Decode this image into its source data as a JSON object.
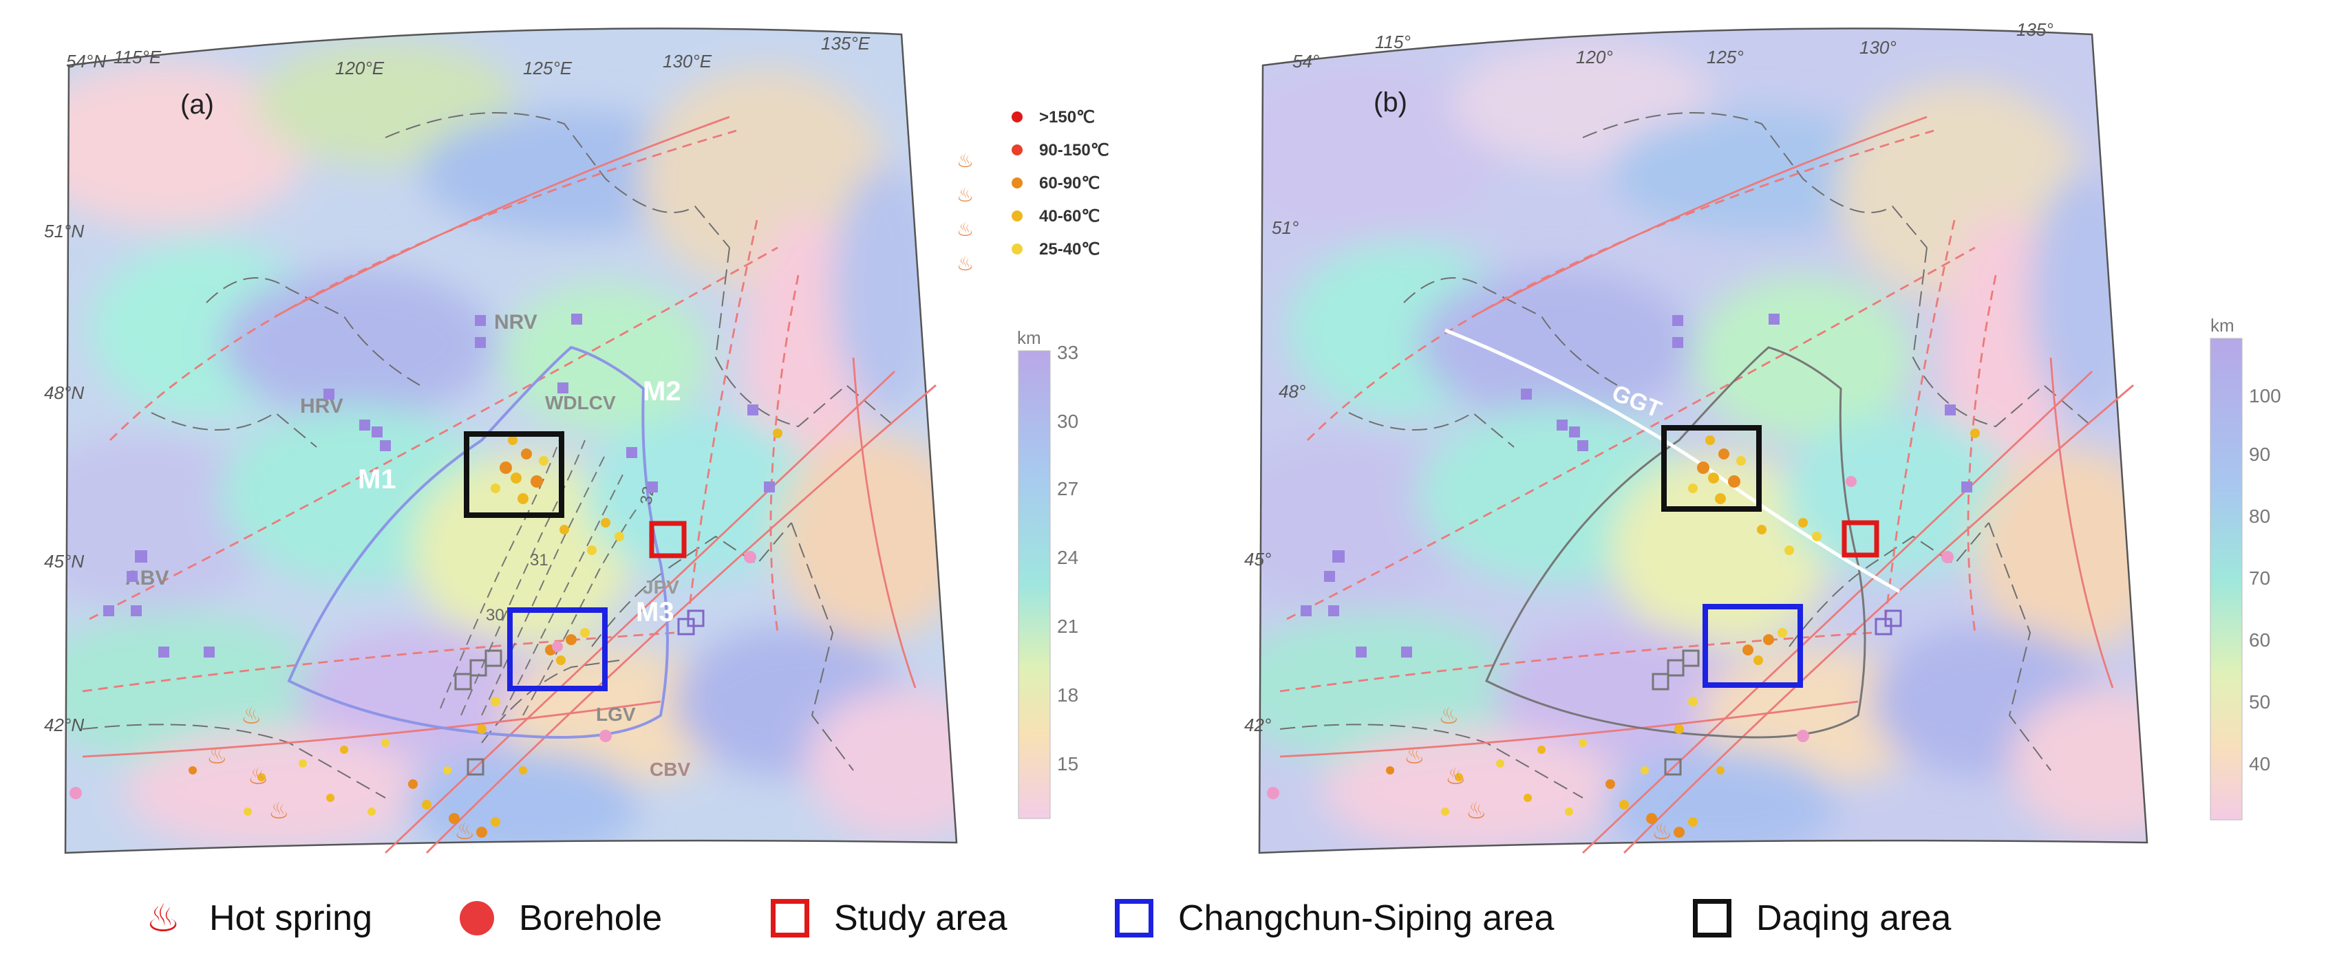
{
  "panels": [
    {
      "label": "(a)",
      "lon_ticks": [
        "115°E",
        "120°E",
        "125°E",
        "130°E",
        "135°E"
      ],
      "lat_ticks": [
        "54°N",
        "51°N",
        "48°N",
        "45°N",
        "42°N"
      ],
      "region_labels": [
        "NRV",
        "HRV",
        "WDLCV",
        "M2",
        "M1",
        "ABV",
        "JPV",
        "M3",
        "LGV",
        "CBV"
      ],
      "contour_labels": [
        "32",
        "31",
        "30"
      ],
      "temp_legend": {
        "entries": [
          ">150℃",
          "90-150℃",
          "60-90℃",
          "40-60℃",
          "25-40℃"
        ],
        "colors": [
          "#e01818",
          "#e8402a",
          "#e88a1e",
          "#eeb71e",
          "#f2d23a"
        ]
      },
      "colorbar": {
        "unit": "km",
        "ticks": [
          "33",
          "30",
          "27",
          "24",
          "21",
          "18",
          "15"
        ]
      }
    },
    {
      "label": "(b)",
      "lon_ticks": [
        "115°",
        "120°",
        "125°",
        "130°",
        "135°"
      ],
      "lat_ticks": [
        "54°",
        "51°",
        "48°",
        "45°",
        "42°"
      ],
      "region_labels": [
        "GGT"
      ],
      "colorbar": {
        "unit": "km",
        "ticks": [
          "100",
          "90",
          "80",
          "70",
          "60",
          "50",
          "40"
        ]
      }
    }
  ],
  "legend": {
    "hot_spring": "Hot spring",
    "borehole": "Borehole",
    "study_area": "Study area",
    "changchun": "Changchun-Siping area",
    "daqing": "Daqing area"
  },
  "colors": {
    "study_area": "#e01818",
    "changchun": "#1c22e0",
    "daqing": "#111111",
    "fault": "#ec7a7a",
    "border": "#6f6f6f",
    "basin_outline": "#8d95e6"
  }
}
